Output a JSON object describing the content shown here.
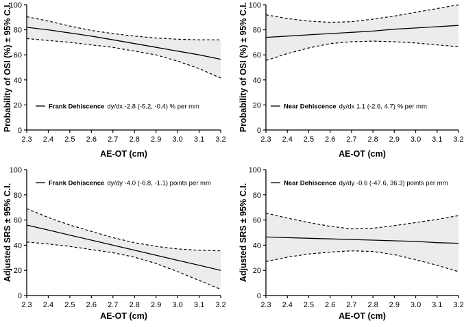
{
  "chart_data": [
    {
      "type": "line",
      "panel": "top-left",
      "xlabel": "AE-OT (cm)",
      "ylabel": "Probability of OSI (%) ± 95% C.I.",
      "xlim": [
        2.3,
        3.2
      ],
      "ylim": [
        0,
        100
      ],
      "xticks": [
        "2.3",
        "2.4",
        "2.5",
        "2.6",
        "2.7",
        "2.8",
        "2.9",
        "3.0",
        "3.1",
        "3.2"
      ],
      "yticks": [
        "0",
        "20",
        "40",
        "60",
        "80",
        "100"
      ],
      "legend": {
        "series": "Frank Dehiscence",
        "stat": "dy/dx -2.8 (-5.2, -0.4) % per mm",
        "placement": "middle-left"
      },
      "series": [
        {
          "name": "Frank Dehiscence",
          "x": [
            2.3,
            2.4,
            2.5,
            2.6,
            2.7,
            2.8,
            2.9,
            3.0,
            3.1,
            3.2
          ],
          "y": [
            82,
            80,
            77.5,
            75,
            72,
            69,
            66,
            63,
            60,
            56.5
          ],
          "ci_lower": [
            73,
            71.5,
            70,
            68,
            66,
            63,
            60,
            55,
            49,
            41.5
          ],
          "ci_upper": [
            90.5,
            87,
            83,
            79.5,
            77,
            75,
            73.5,
            72.5,
            72,
            72
          ]
        }
      ]
    },
    {
      "type": "line",
      "panel": "top-right",
      "xlabel": "AE-OT (cm)",
      "ylabel": "Probability of OSI (%) ± 95% C.I.",
      "xlim": [
        2.3,
        3.2
      ],
      "ylim": [
        0,
        100
      ],
      "xticks": [
        "2.3",
        "2.4",
        "2.5",
        "2.6",
        "2.7",
        "2.8",
        "2.9",
        "3.0",
        "3.1",
        "3.2"
      ],
      "yticks": [
        "0",
        "20",
        "40",
        "60",
        "80",
        "100"
      ],
      "legend": {
        "series": "Near Dehiscence",
        "stat": "dy/dx 1.1 (-2.6, 4.7) % per mm",
        "placement": "middle-left"
      },
      "series": [
        {
          "name": "Near Dehiscence",
          "x": [
            2.3,
            2.4,
            2.5,
            2.6,
            2.7,
            2.8,
            2.9,
            3.0,
            3.1,
            3.2
          ],
          "y": [
            74,
            75,
            76,
            77,
            78,
            79,
            80.5,
            81.5,
            82.5,
            83.5
          ],
          "ci_lower": [
            55.5,
            61,
            65.5,
            69,
            70.5,
            71,
            70.5,
            69.5,
            68,
            66.5
          ],
          "ci_upper": [
            92,
            89,
            87,
            86,
            86.5,
            88.5,
            91,
            94,
            97,
            100
          ]
        }
      ]
    },
    {
      "type": "line",
      "panel": "bottom-left",
      "xlabel": "AE-OT (cm)",
      "ylabel": "Adjusted SRS ± 95% C.I.",
      "xlim": [
        2.3,
        3.2
      ],
      "ylim": [
        0,
        100
      ],
      "xticks": [
        "2.3",
        "2.4",
        "2.5",
        "2.6",
        "2.7",
        "2.8",
        "2.9",
        "3.0",
        "3.1",
        "3.2"
      ],
      "yticks": [
        "0",
        "20",
        "40",
        "60",
        "80",
        "100"
      ],
      "legend": {
        "series": "Frank Dehiscence",
        "stat": "dy/dy -4.0 (-6.8, -1.1) points per mm",
        "placement": "top-left"
      },
      "series": [
        {
          "name": "Frank Dehiscence",
          "x": [
            2.3,
            2.4,
            2.5,
            2.6,
            2.7,
            2.8,
            2.9,
            3.0,
            3.1,
            3.2
          ],
          "y": [
            56,
            52,
            48,
            44,
            40,
            36,
            32,
            28,
            24,
            20
          ],
          "ci_lower": [
            42.5,
            41,
            39,
            36.5,
            34,
            30.5,
            25.5,
            19,
            12,
            5
          ],
          "ci_upper": [
            69,
            62,
            56,
            51,
            46,
            42,
            39,
            37,
            36,
            35.5
          ]
        }
      ]
    },
    {
      "type": "line",
      "panel": "bottom-right",
      "xlabel": "AE-OT (cm)",
      "ylabel": "Adjusted SRS ± 95% C.I.",
      "xlim": [
        2.3,
        3.2
      ],
      "ylim": [
        0,
        100
      ],
      "xticks": [
        "2.3",
        "2.4",
        "2.5",
        "2.6",
        "2.7",
        "2.8",
        "2.9",
        "3.0",
        "3.1",
        "3.2"
      ],
      "yticks": [
        "0",
        "20",
        "40",
        "60",
        "80",
        "100"
      ],
      "legend": {
        "series": "Near Dehiscence",
        "stat": "dy/dy -0.6 (-47.6, 36.3) points per mm",
        "placement": "top-left"
      },
      "series": [
        {
          "name": "Near Dehiscence",
          "x": [
            2.3,
            2.4,
            2.5,
            2.6,
            2.7,
            2.8,
            2.9,
            3.0,
            3.1,
            3.2
          ],
          "y": [
            46.5,
            46,
            45.5,
            45,
            44.5,
            44,
            43.5,
            43,
            42,
            41.5
          ],
          "ci_lower": [
            27,
            30.5,
            33,
            34.5,
            35.5,
            35,
            32.5,
            28.5,
            24,
            19
          ],
          "ci_upper": [
            65.5,
            61.5,
            58,
            55,
            53,
            53.5,
            55.5,
            58,
            60.5,
            63.5
          ]
        }
      ]
    }
  ]
}
